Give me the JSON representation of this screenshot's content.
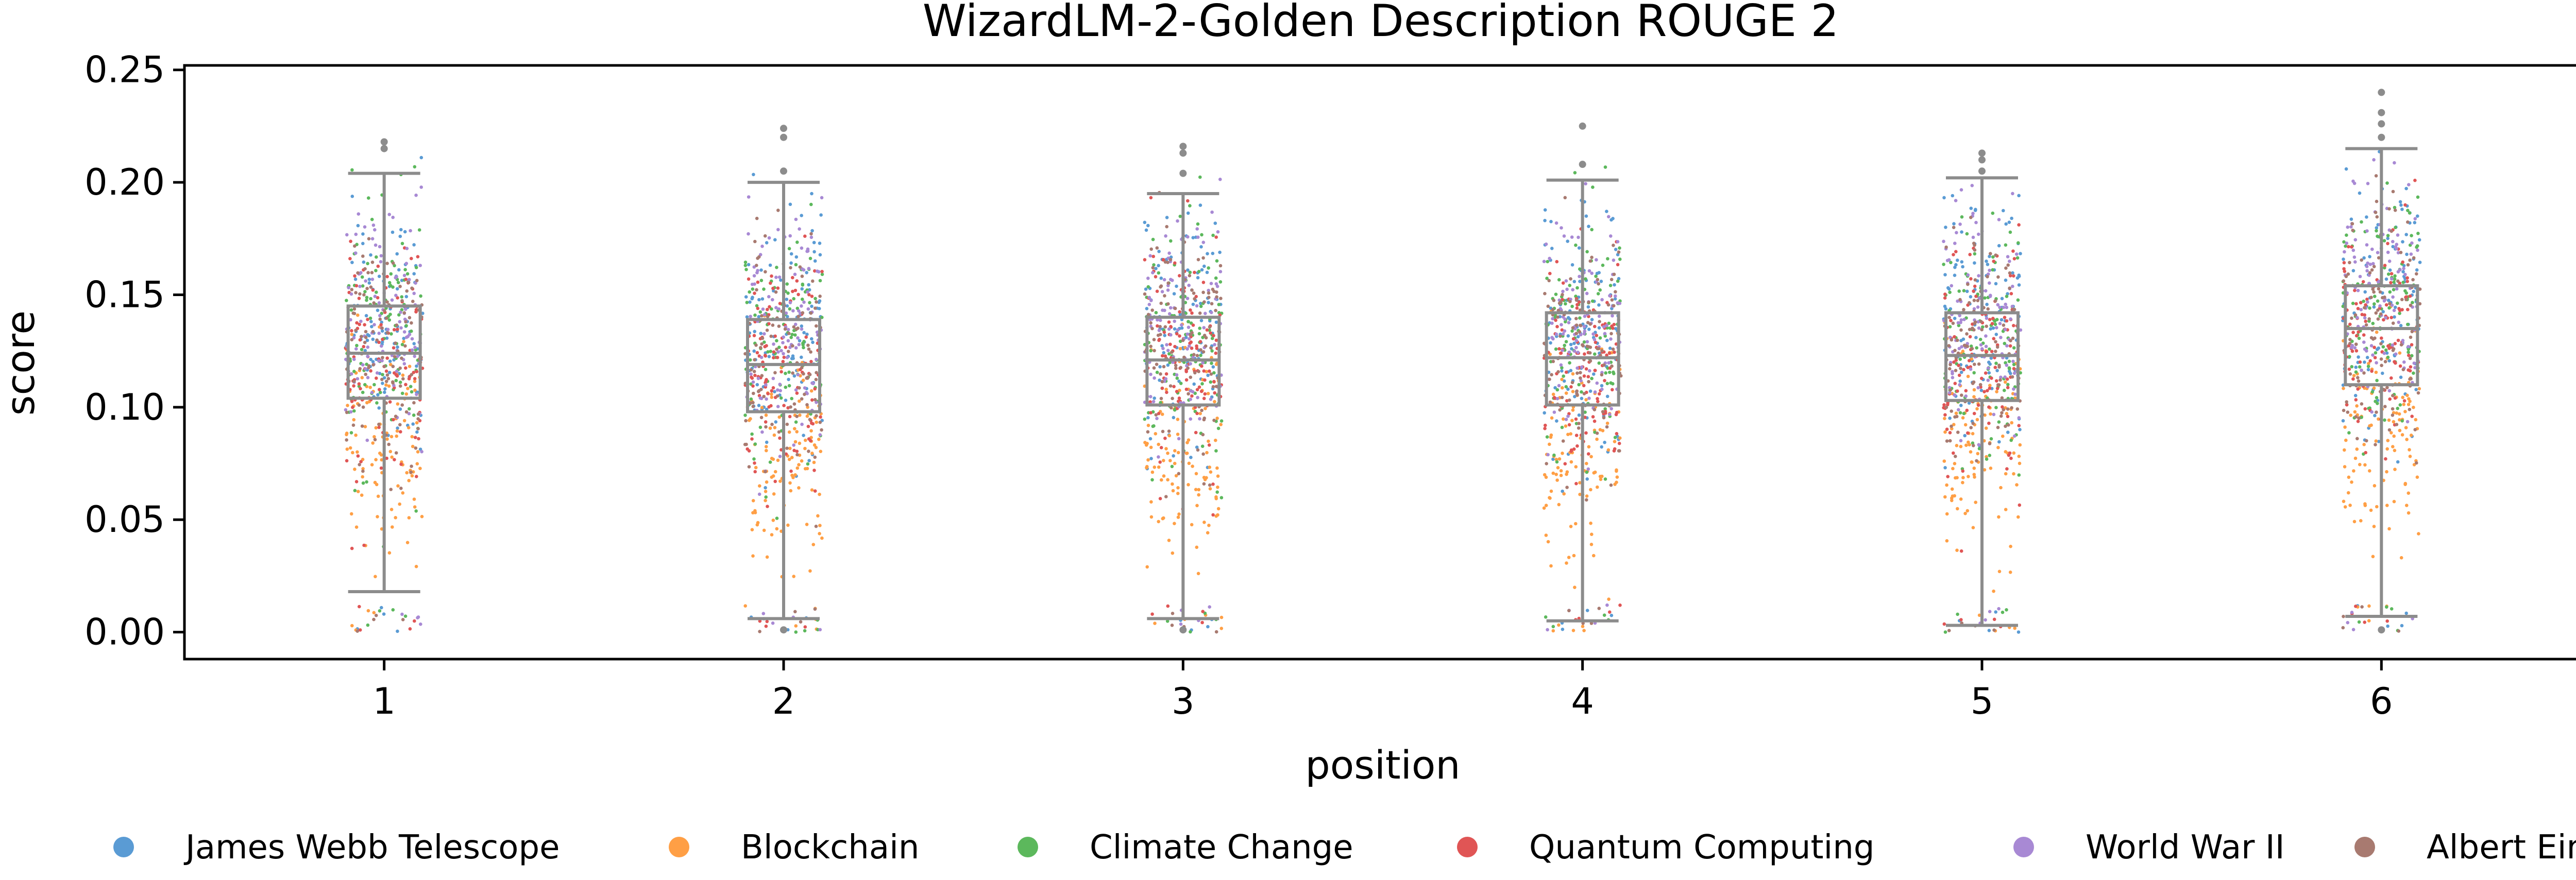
{
  "chart_data": {
    "type": "box",
    "title": "WizardLM-2-Golden Description ROUGE 2",
    "xlabel": "position",
    "ylabel": "score",
    "categories": [
      "1",
      "2",
      "3",
      "4",
      "5",
      "6"
    ],
    "ylim": [
      -0.012,
      0.252
    ],
    "yticks": [
      "0.00",
      "0.05",
      "0.10",
      "0.15",
      "0.20",
      "0.25"
    ],
    "box_stats": [
      {
        "position": "1",
        "whisker_low": 0.018,
        "q1": 0.104,
        "median": 0.124,
        "q3": 0.145,
        "whisker_high": 0.204
      },
      {
        "position": "2",
        "whisker_low": 0.006,
        "q1": 0.098,
        "median": 0.119,
        "q3": 0.139,
        "whisker_high": 0.2
      },
      {
        "position": "3",
        "whisker_low": 0.006,
        "q1": 0.101,
        "median": 0.121,
        "q3": 0.14,
        "whisker_high": 0.195
      },
      {
        "position": "4",
        "whisker_low": 0.005,
        "q1": 0.101,
        "median": 0.122,
        "q3": 0.142,
        "whisker_high": 0.201
      },
      {
        "position": "5",
        "whisker_low": 0.003,
        "q1": 0.103,
        "median": 0.123,
        "q3": 0.142,
        "whisker_high": 0.202
      },
      {
        "position": "6",
        "whisker_low": 0.007,
        "q1": 0.11,
        "median": 0.135,
        "q3": 0.154,
        "whisker_high": 0.215
      }
    ],
    "outliers": [
      {
        "position": "1",
        "values": [
          0.218,
          0.215
        ]
      },
      {
        "position": "2",
        "values": [
          0.224,
          0.22,
          0.205,
          0.001
        ]
      },
      {
        "position": "3",
        "values": [
          0.216,
          0.213,
          0.204,
          0.001
        ]
      },
      {
        "position": "4",
        "values": [
          0.225,
          0.208
        ]
      },
      {
        "position": "5",
        "values": [
          0.213,
          0.21,
          0.205
        ]
      },
      {
        "position": "6",
        "values": [
          0.24,
          0.231,
          0.226,
          0.22,
          0.001
        ]
      }
    ],
    "series": [
      {
        "name": "James Webb Telescope",
        "color": "#5a9bd4"
      },
      {
        "name": "Blockchain",
        "color": "#ff9f45"
      },
      {
        "name": "Climate Change",
        "color": "#5cb85c"
      },
      {
        "name": "Quantum Computing",
        "color": "#e05555"
      },
      {
        "name": "World War II",
        "color": "#a889d4"
      },
      {
        "name": "Albert Einstein",
        "color": "#a87a70"
      }
    ],
    "grid": false,
    "legend_position": "bottom"
  }
}
